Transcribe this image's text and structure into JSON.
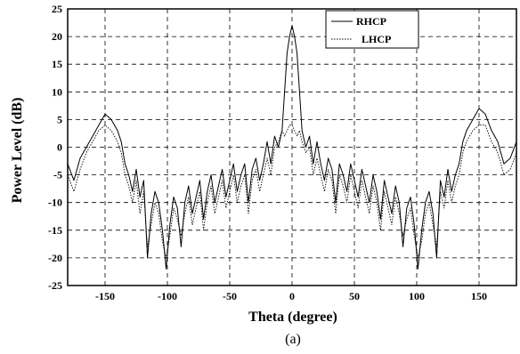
{
  "chart_data": {
    "type": "line",
    "title": "",
    "xlabel": "Theta (degree)",
    "ylabel": "Power Level (dB)",
    "caption": "(a)",
    "xlim": [
      -180,
      180
    ],
    "ylim": [
      -25,
      25
    ],
    "xticks": [
      -150,
      -100,
      -50,
      0,
      50,
      100,
      150
    ],
    "yticks": [
      25,
      20,
      15,
      10,
      5,
      0,
      -5,
      -10,
      -15,
      -20,
      -25
    ],
    "grid": true,
    "legend": "top-right",
    "series": [
      {
        "name": "RHCP",
        "style": "solid",
        "x": [
          -180,
          -175,
          -170,
          -165,
          -160,
          -155,
          -150,
          -145,
          -140,
          -137,
          -134,
          -131,
          -128,
          -125,
          -122,
          -119,
          -116,
          -113,
          -110,
          -107,
          -104,
          -101,
          -98,
          -95,
          -92,
          -89,
          -86,
          -83,
          -80,
          -77,
          -74,
          -71,
          -68,
          -65,
          -62,
          -59,
          -56,
          -53,
          -50,
          -47,
          -44,
          -41,
          -38,
          -35,
          -32,
          -29,
          -26,
          -23,
          -20,
          -17,
          -14,
          -11,
          -8,
          -6,
          -4,
          -2,
          0,
          2,
          4,
          6,
          8,
          11,
          14,
          17,
          20,
          23,
          26,
          29,
          32,
          35,
          38,
          41,
          44,
          47,
          50,
          53,
          56,
          59,
          62,
          65,
          68,
          71,
          74,
          77,
          80,
          83,
          86,
          89,
          92,
          95,
          98,
          101,
          104,
          107,
          110,
          113,
          116,
          119,
          122,
          125,
          128,
          131,
          134,
          137,
          140,
          145,
          150,
          155,
          160,
          165,
          170,
          175,
          180
        ],
        "values": [
          -3,
          -6,
          -2,
          0,
          2,
          4,
          6,
          5,
          3,
          1,
          -3,
          -5,
          -8,
          -4,
          -9,
          -6,
          -20,
          -12,
          -8,
          -10,
          -15,
          -22,
          -14,
          -9,
          -11,
          -18,
          -10,
          -7,
          -12,
          -9,
          -6,
          -13,
          -8,
          -5,
          -10,
          -7,
          -4,
          -9,
          -6,
          -3,
          -8,
          -5,
          -3,
          -10,
          -4,
          -2,
          -6,
          -3,
          1,
          -3,
          2,
          0,
          3,
          10,
          17,
          20,
          22,
          20,
          17,
          10,
          3,
          0,
          2,
          -3,
          1,
          -3,
          -6,
          -2,
          -4,
          -10,
          -3,
          -5,
          -8,
          -3,
          -6,
          -9,
          -4,
          -7,
          -10,
          -5,
          -8,
          -13,
          -6,
          -9,
          -12,
          -7,
          -10,
          -18,
          -11,
          -9,
          -14,
          -22,
          -15,
          -10,
          -8,
          -12,
          -20,
          -6,
          -9,
          -4,
          -8,
          -5,
          -3,
          1,
          3,
          5,
          7,
          6,
          3,
          1,
          -3,
          -2,
          1
        ]
      },
      {
        "name": "LHCP",
        "style": "dotted",
        "x": [
          -180,
          -175,
          -170,
          -165,
          -160,
          -155,
          -150,
          -145,
          -140,
          -137,
          -134,
          -131,
          -128,
          -125,
          -122,
          -119,
          -116,
          -113,
          -110,
          -107,
          -104,
          -101,
          -98,
          -95,
          -92,
          -89,
          -86,
          -83,
          -80,
          -77,
          -74,
          -71,
          -68,
          -65,
          -62,
          -59,
          -56,
          -53,
          -50,
          -47,
          -44,
          -41,
          -38,
          -35,
          -32,
          -29,
          -26,
          -23,
          -20,
          -17,
          -14,
          -11,
          -8,
          -6,
          -4,
          -2,
          0,
          2,
          4,
          6,
          8,
          11,
          14,
          17,
          20,
          23,
          26,
          29,
          32,
          35,
          38,
          41,
          44,
          47,
          50,
          53,
          56,
          59,
          62,
          65,
          68,
          71,
          74,
          77,
          80,
          83,
          86,
          89,
          92,
          95,
          98,
          101,
          104,
          107,
          110,
          113,
          116,
          119,
          122,
          125,
          128,
          131,
          134,
          137,
          140,
          145,
          150,
          155,
          160,
          165,
          170,
          175,
          180
        ],
        "values": [
          -5,
          -8,
          -4,
          -1,
          1,
          3,
          4,
          3,
          1,
          -1,
          -5,
          -7,
          -10,
          -6,
          -12,
          -8,
          -18,
          -14,
          -10,
          -12,
          -17,
          -20,
          -16,
          -11,
          -13,
          -16,
          -12,
          -9,
          -14,
          -11,
          -8,
          -15,
          -10,
          -7,
          -12,
          -9,
          -6,
          -11,
          -8,
          -5,
          -10,
          -7,
          -5,
          -12,
          -6,
          -4,
          -8,
          -5,
          -2,
          -5,
          0,
          1,
          3,
          2,
          3,
          4,
          4,
          3,
          2,
          3,
          1,
          -1,
          0,
          -5,
          -2,
          -5,
          -8,
          -4,
          -6,
          -12,
          -5,
          -7,
          -10,
          -5,
          -8,
          -11,
          -6,
          -9,
          -12,
          -7,
          -10,
          -15,
          -8,
          -11,
          -14,
          -9,
          -12,
          -16,
          -13,
          -11,
          -16,
          -20,
          -17,
          -12,
          -10,
          -14,
          -18,
          -8,
          -11,
          -6,
          -10,
          -7,
          -5,
          -1,
          1,
          3,
          4,
          4,
          1,
          -1,
          -5,
          -4,
          -1
        ]
      }
    ]
  }
}
